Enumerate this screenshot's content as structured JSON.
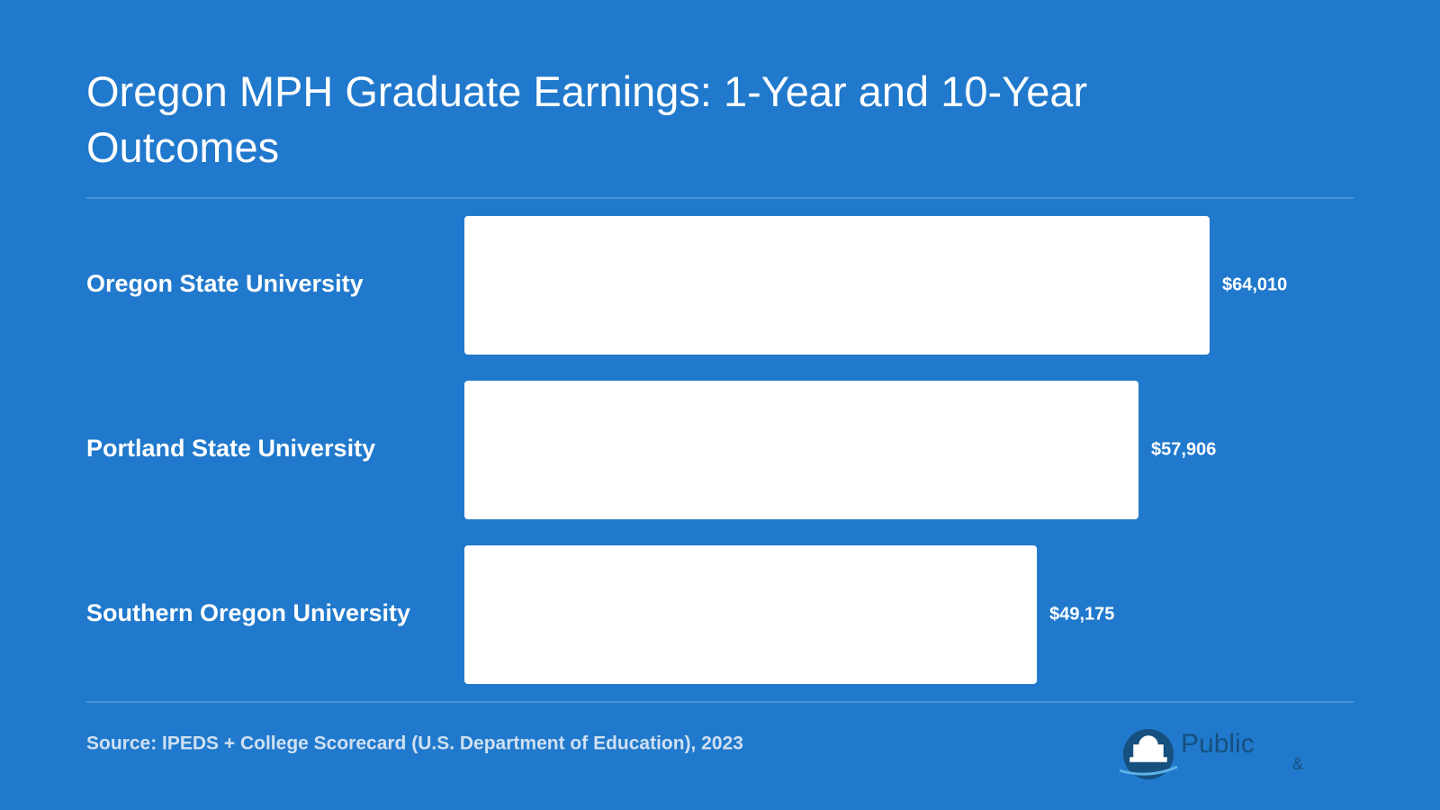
{
  "chart_data": {
    "type": "bar",
    "orientation": "horizontal",
    "title": "Oregon MPH Graduate Earnings: 1-Year and 10-Year Outcomes",
    "categories": [
      "Oregon State University",
      "Portland State University",
      "Southern Oregon University"
    ],
    "values": [
      64010,
      57906,
      49175
    ],
    "value_labels": [
      "$64,010",
      "$57,906",
      "$49,175"
    ],
    "color": "#ffffff",
    "source": "Source: IPEDS + College Scorecard (U.S. Department of Education), 2023"
  },
  "logo": {
    "name": "Public",
    "ampersand": "&"
  }
}
